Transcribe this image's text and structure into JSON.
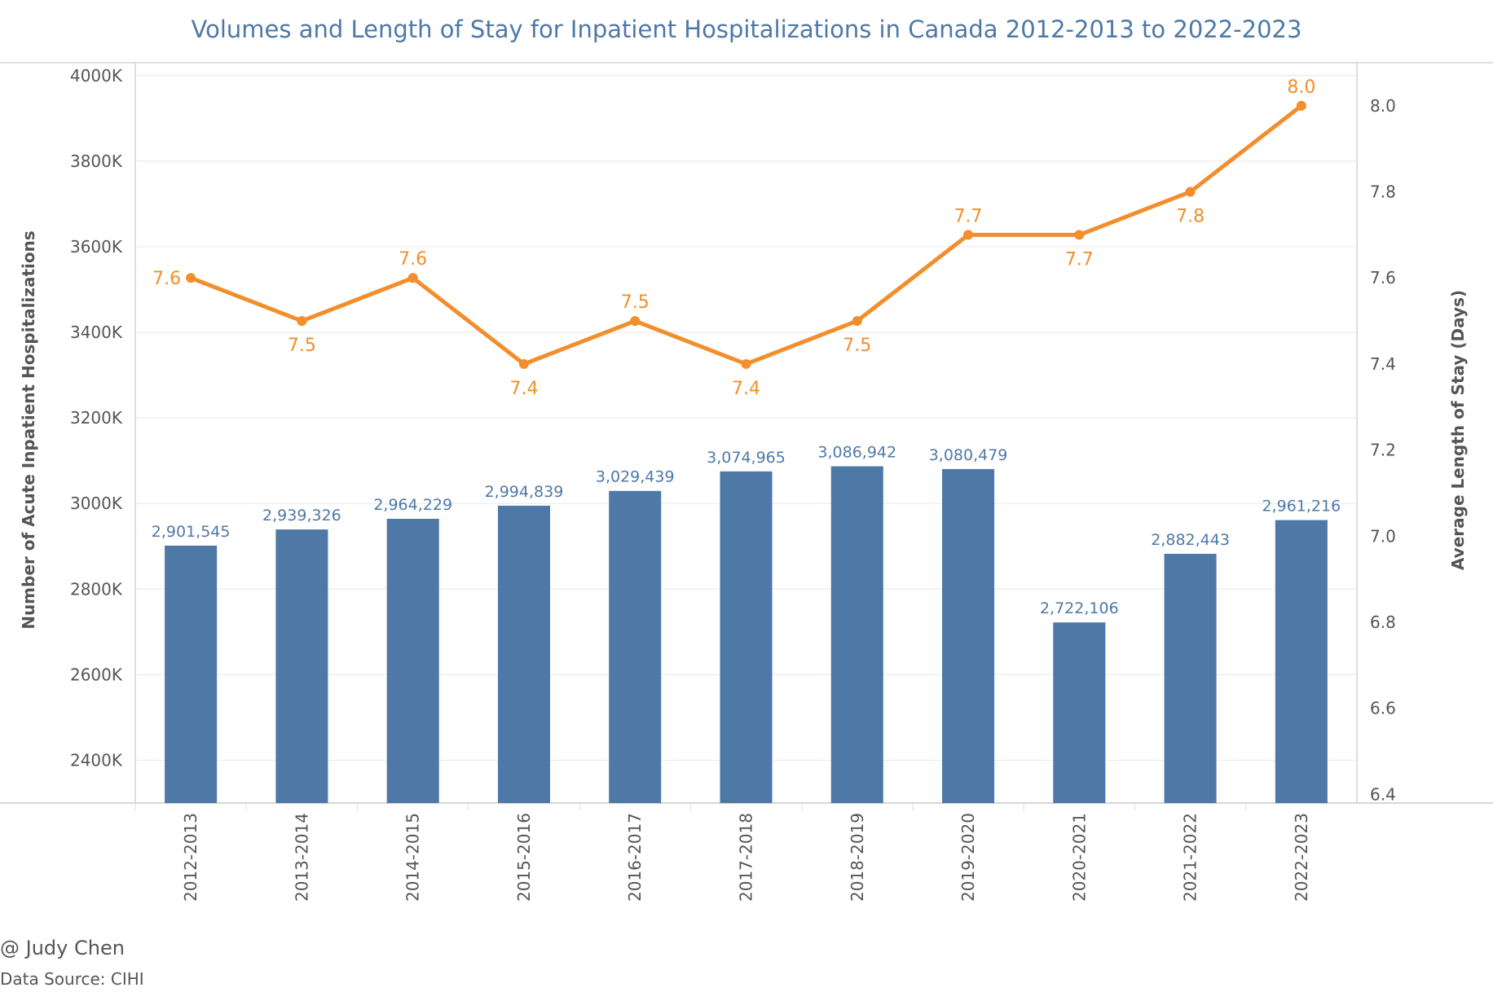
{
  "chart_data": {
    "type": "bar",
    "title": "Volumes and Length of Stay for Inpatient Hospitalizations in Canada 2012-2013 to 2022-2023",
    "xlabel": "",
    "ylabel": "Number of Acute Inpatient Hospitalizations",
    "y2label": "Average Length of Stay (Days)",
    "categories": [
      "2012-2013",
      "2013-2014",
      "2014-2015",
      "2015-2016",
      "2016-2017",
      "2017-2018",
      "2018-2019",
      "2019-2020",
      "2020-2021",
      "2021-2022",
      "2022-2023"
    ],
    "series": [
      {
        "type": "bar",
        "axis": "left",
        "values": [
          2901545,
          2939326,
          2964229,
          2994839,
          3029439,
          3074965,
          3086942,
          3080479,
          2722106,
          2882443,
          2961216
        ],
        "labels": [
          "2,901,545",
          "2,939,326",
          "2,964,229",
          "2,994,839",
          "3,029,439",
          "3,074,965",
          "3,086,942",
          "3,080,479",
          "2,722,106",
          "2,882,443",
          "2,961,216"
        ],
        "color": "#4e79a7"
      },
      {
        "type": "line",
        "axis": "right",
        "values": [
          7.6,
          7.5,
          7.6,
          7.4,
          7.5,
          7.4,
          7.5,
          7.7,
          7.7,
          7.8,
          8.0
        ],
        "labels": [
          "7.6",
          "7.5",
          "7.6",
          "7.4",
          "7.5",
          "7.4",
          "7.5",
          "7.7",
          "7.7",
          "7.8",
          "8.0"
        ],
        "label_positions": [
          "left",
          "below",
          "above",
          "below",
          "above",
          "below",
          "below",
          "above",
          "below",
          "below",
          "above"
        ],
        "color": "#f28e2b"
      }
    ],
    "ylim": [
      2300000,
      4030000
    ],
    "yticks": [
      2400000,
      2600000,
      2800000,
      3000000,
      3200000,
      3400000,
      3600000,
      3800000,
      4000000
    ],
    "ytick_labels": [
      "2400K",
      "2600K",
      "2800K",
      "3000K",
      "3200K",
      "3400K",
      "3600K",
      "3800K",
      "4000K"
    ],
    "y2lim": [
      6.38,
      8.1
    ],
    "y2ticks": [
      6.4,
      6.6,
      6.8,
      7.0,
      7.2,
      7.4,
      7.6,
      7.8,
      8.0
    ],
    "y2tick_labels": [
      "6.4",
      "6.6",
      "6.8",
      "7.0",
      "7.2",
      "7.4",
      "7.6",
      "7.8",
      "8.0"
    ],
    "grid": true,
    "legend": "none"
  },
  "footer": {
    "credit": "@ Judy Chen",
    "source": "Data Source: CIHI"
  }
}
